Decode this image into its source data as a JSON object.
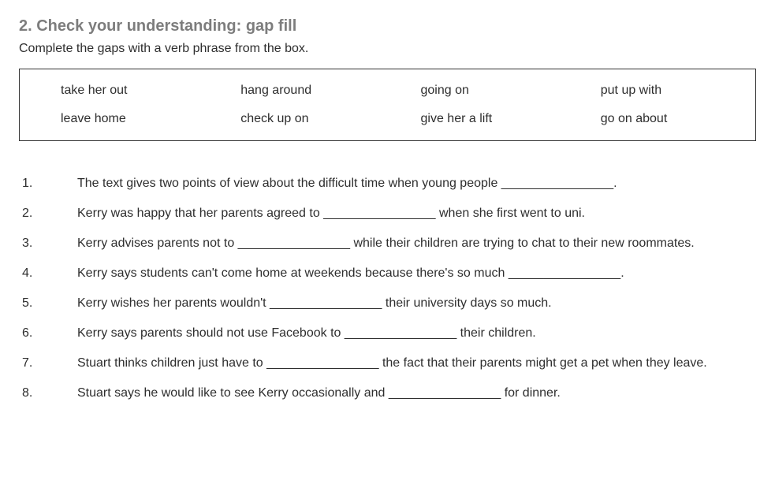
{
  "heading": "2. Check your understanding: gap fill",
  "instruction": "Complete the gaps with a verb phrase from the box.",
  "wordbox": {
    "rows": [
      [
        "take her out",
        "hang around",
        "going on",
        "put up with"
      ],
      [
        "leave home",
        "check up on",
        "give her a lift",
        "go on about"
      ]
    ]
  },
  "questions": [
    {
      "num": "1.",
      "text": "The text gives two points of view about the difficult time when young people ________________."
    },
    {
      "num": "2.",
      "text": "Kerry was happy that her parents agreed to ________________ when she first went to uni."
    },
    {
      "num": "3.",
      "text": "Kerry advises parents not to ________________ while their children are trying to chat to their new roommates."
    },
    {
      "num": "4.",
      "text": "Kerry says students can't come home at weekends because there's so much ________________."
    },
    {
      "num": "5.",
      "text": "Kerry wishes her parents wouldn't ________________ their university days so much."
    },
    {
      "num": "6.",
      "text": "Kerry says parents should not use Facebook to ________________ their children."
    },
    {
      "num": "7.",
      "text": "Stuart thinks children just have to ________________ the fact that their parents might get a pet when they leave."
    },
    {
      "num": "8.",
      "text": "Stuart says he would like to see Kerry occasionally and ________________ for dinner."
    }
  ]
}
